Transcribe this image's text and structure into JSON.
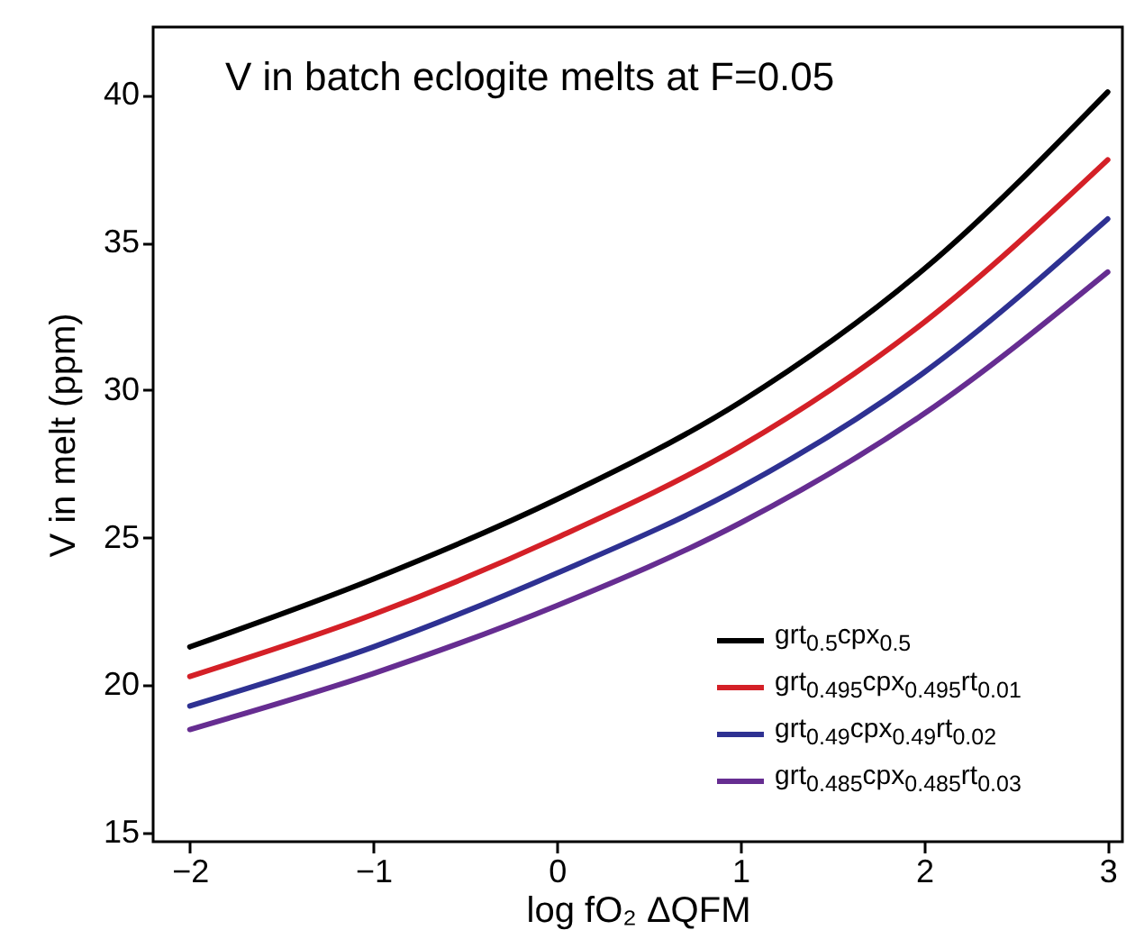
{
  "chart_data": {
    "type": "line",
    "title": "V in batch eclogite melts at F=0.05",
    "xlabel": "log fO₂ ΔQFM",
    "ylabel": "V in melt (ppm)",
    "x": [
      -2,
      -1,
      0,
      1,
      2,
      3
    ],
    "series": [
      {
        "name": "grt$_{0.5}$cpx$_{0.5}$",
        "color": "#000000",
        "values": [
          21.3,
          23.6,
          26.3,
          29.6,
          34.1,
          40.1
        ]
      },
      {
        "name": "grt$_{0.495}$cpx$_{0.495}$rt$_{0.01}$",
        "color": "#d42027",
        "values": [
          20.3,
          22.4,
          25.0,
          28.1,
          32.3,
          37.8
        ]
      },
      {
        "name": "grt$_{0.49}$cpx$_{0.49}$rt$_{0.02}$",
        "color": "#2e3192",
        "values": [
          19.3,
          21.3,
          23.8,
          26.7,
          30.6,
          35.8
        ]
      },
      {
        "name": "grt$_{0.485}$cpx$_{0.485}$rt$_{0.03}$",
        "color": "#662d91",
        "values": [
          18.5,
          20.4,
          22.7,
          25.5,
          29.2,
          34.0
        ]
      }
    ],
    "xlim": [
      -2.2,
      3.08
    ],
    "ylim": [
      14.7,
      42.3
    ],
    "xticks": [
      -2,
      -1,
      0,
      1,
      2,
      3
    ],
    "yticks": [
      15,
      20,
      25,
      30,
      35,
      40
    ],
    "grid": false,
    "legend": "bottom right",
    "marker": "none",
    "line_style": "solid"
  }
}
